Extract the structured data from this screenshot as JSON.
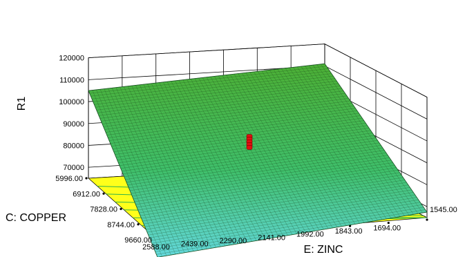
{
  "chart_data": {
    "type": "surface-3d",
    "title": "",
    "zlabel": "R1",
    "xlabel": "E: ZINC",
    "ylabel": "C: COPPER",
    "z_ticks": [
      "70000",
      "80000",
      "90000",
      "100000",
      "110000",
      "120000"
    ],
    "x_ticks": [
      "2588.00",
      "2439.00",
      "2290.00",
      "2141.00",
      "1992.00",
      "1843.00",
      "1694.00",
      "1545.00"
    ],
    "y_ticks": [
      "5996.00",
      "6912.00",
      "7828.00",
      "8744.00",
      "9660.00"
    ],
    "zlim": [
      65000,
      120000
    ],
    "surface_corners": {
      "zinc_2588_copper_5996": 105000,
      "zinc_1545_copper_5996": 111000,
      "zinc_1545_copper_9660": 67500,
      "zinc_2588_copper_9660": 57000
    },
    "design_point": {
      "zinc": 2066.5,
      "copper": 7828,
      "r1_low": 89000,
      "r1_high": 94000,
      "count": 5
    },
    "colors": {
      "surface_high": "#4caf35",
      "surface_low": "#5fd3d8",
      "floor": "#ffff1a",
      "contour": "#2fb24b",
      "design_point": "#e01010"
    }
  }
}
